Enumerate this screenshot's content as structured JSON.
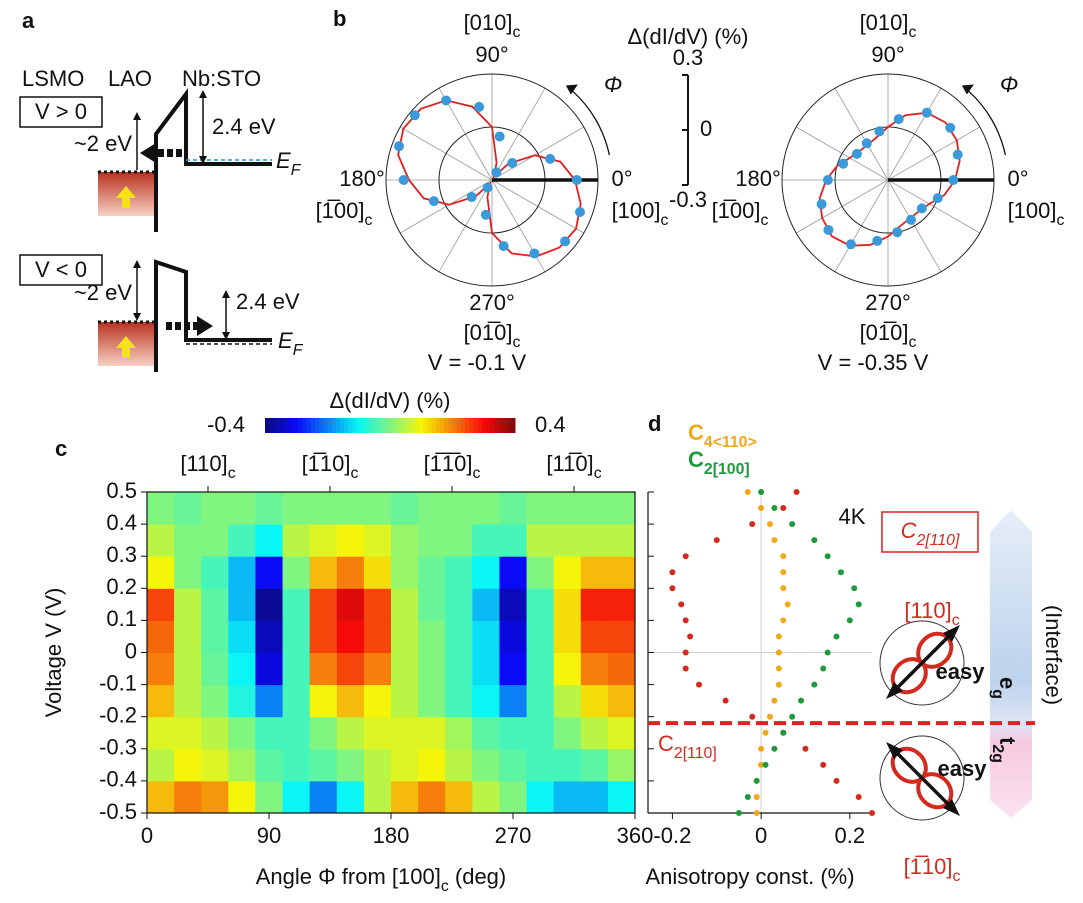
{
  "panel_labels": [
    "a",
    "b",
    "c",
    "d"
  ],
  "diagram": {
    "materials": [
      {
        "text": "LSMO",
        "color": "#e02020"
      },
      {
        "text": "LAO",
        "color": "#111111"
      },
      {
        "text": "Nb:STO",
        "color": "#1a9ad6"
      }
    ],
    "forward": {
      "bias": "V > 0",
      "barrier": "~2 eV",
      "gap": "2.4 eV",
      "fermi": {
        "main": "E",
        "sub": "F"
      }
    },
    "reverse": {
      "bias": "V < 0",
      "barrier": "~2 eV",
      "gap": "2.4 eV",
      "fermi": {
        "main": "E",
        "sub": "F"
      }
    }
  },
  "chart_data": [
    {
      "type": "polar",
      "title": "V = -0.1 V",
      "rlim": [
        -0.3,
        0.3
      ],
      "rticks": [
        0.3,
        0,
        -0.3
      ],
      "scale_bar": true,
      "r_label": "Δ(dI/dV) (%)",
      "phi_label": "Φ",
      "color": "#3a9ad9",
      "theta": [
        0,
        20,
        40,
        60,
        80,
        100,
        120,
        140,
        160,
        180,
        200,
        220,
        240,
        260,
        280,
        300,
        320,
        340
      ],
      "values": [
        0.18,
        0.05,
        -0.15,
        -0.25,
        -0.05,
        0.12,
        0.22,
        0.27,
        0.26,
        0.2,
        0.05,
        -0.15,
        -0.25,
        -0.1,
        0.08,
        0.18,
        0.24,
        0.23
      ],
      "fit": {
        "color": "#e02020",
        "theta": [
          0,
          15,
          30,
          45,
          60,
          75,
          90,
          105,
          120,
          135,
          150,
          165,
          180,
          195,
          210,
          225,
          240,
          255,
          270,
          285,
          300,
          315,
          330,
          345
        ],
        "values": [
          0.17,
          0.1,
          -0.02,
          -0.17,
          -0.28,
          -0.2,
          0,
          0.13,
          0.22,
          0.27,
          0.28,
          0.25,
          0.17,
          0.1,
          -0.02,
          -0.17,
          -0.28,
          -0.2,
          0,
          0.13,
          0.2,
          0.24,
          0.25,
          0.22
        ]
      },
      "angle_labels": [
        {
          "value": 0,
          "label": "0°"
        },
        {
          "value": 90,
          "label": "90°"
        },
        {
          "value": 180,
          "label": "180°"
        },
        {
          "value": 270,
          "label": "270°"
        }
      ],
      "direction_labels": [
        {
          "angle": 0,
          "main": "[100]",
          "sub": "c"
        },
        {
          "angle": 90,
          "main": "[010]",
          "sub": "c"
        },
        {
          "angle": 180,
          "main": "[1̅00]",
          "sub": "c"
        },
        {
          "angle": 270,
          "main": "[01̅0]",
          "sub": "c"
        }
      ]
    },
    {
      "type": "polar",
      "title": "V = -0.35 V",
      "rlim": [
        -0.3,
        0.3
      ],
      "rticks": [
        0.3,
        0,
        -0.3
      ],
      "scale_bar": false,
      "phi_label": "Φ",
      "color": "#3a9ad9",
      "theta": [
        0,
        20,
        40,
        60,
        80,
        100,
        120,
        140,
        160,
        180,
        200,
        220,
        240,
        260,
        280,
        300,
        320,
        340
      ],
      "values": [
        0.07,
        0.12,
        0.16,
        0.14,
        0.05,
        -0.02,
        -0.06,
        -0.07,
        -0.03,
        0.04,
        0.1,
        0.14,
        0.12,
        0.05,
        0,
        -0.04,
        -0.05,
        0
      ],
      "fit": {
        "color": "#e02020",
        "theta": [
          0,
          15,
          30,
          45,
          60,
          75,
          90,
          105,
          120,
          135,
          150,
          165,
          180,
          195,
          210,
          225,
          240,
          255,
          270,
          285,
          300,
          315,
          330,
          345
        ],
        "values": [
          0.08,
          0.12,
          0.15,
          0.16,
          0.14,
          0.08,
          0,
          -0.05,
          -0.07,
          -0.07,
          -0.05,
          0,
          0.05,
          0.1,
          0.13,
          0.15,
          0.13,
          0.08,
          0.02,
          -0.03,
          -0.05,
          -0.05,
          -0.03,
          0.03
        ]
      },
      "angle_labels": [
        {
          "value": 0,
          "label": "0°"
        },
        {
          "value": 90,
          "label": "90°"
        },
        {
          "value": 180,
          "label": "180°"
        },
        {
          "value": 270,
          "label": "270°"
        }
      ],
      "direction_labels": [
        {
          "angle": 0,
          "main": "[100]",
          "sub": "c"
        },
        {
          "angle": 90,
          "main": "[010]",
          "sub": "c"
        },
        {
          "angle": 180,
          "main": "[1̅00]",
          "sub": "c"
        },
        {
          "angle": 270,
          "main": "[01̅0]",
          "sub": "c"
        }
      ]
    },
    {
      "type": "heatmap",
      "colormap": "jet",
      "zlim": [
        -0.4,
        0.4
      ],
      "colorbar": {
        "label": "Δ(dI/dV) (%)",
        "ticks": [
          -0.4,
          0.4
        ]
      },
      "xbins": [
        0,
        20,
        40,
        60,
        80,
        100,
        120,
        140,
        160,
        180,
        200,
        220,
        240,
        260,
        280,
        300,
        320,
        340,
        360
      ],
      "ybins": [
        -0.5,
        -0.4,
        -0.3,
        -0.2,
        -0.1,
        0,
        0.1,
        0.2,
        0.3,
        0.4,
        0.5
      ],
      "z": [
        [
          0.15,
          0.2,
          0.18,
          0.1,
          0,
          -0.1,
          -0.2,
          -0.1,
          0.05,
          0.15,
          0.2,
          0.15,
          0.05,
          0,
          -0.1,
          -0.15,
          -0.15,
          -0.1
        ],
        [
          0.05,
          0.1,
          0.08,
          0.03,
          -0.03,
          -0.05,
          -0.03,
          0,
          0.05,
          0.08,
          0.1,
          0.05,
          0,
          -0.03,
          -0.05,
          -0.05,
          -0.03,
          0.02
        ],
        [
          0.08,
          0.08,
          0.05,
          0,
          -0.05,
          -0.05,
          0,
          0.05,
          0.08,
          0.08,
          0.08,
          0.03,
          -0.03,
          -0.05,
          -0.05,
          0,
          0.05,
          0.08
        ],
        [
          0.15,
          0.05,
          0,
          -0.08,
          -0.2,
          -0.05,
          0.1,
          0.15,
          0.1,
          0.05,
          0,
          -0.05,
          -0.1,
          -0.2,
          -0.05,
          0.05,
          0.12,
          0.15
        ],
        [
          0.2,
          0.05,
          -0.02,
          -0.1,
          -0.32,
          -0.05,
          0.2,
          0.25,
          0.2,
          0.05,
          0,
          -0.05,
          -0.12,
          -0.3,
          -0.05,
          0.1,
          0.2,
          0.22
        ],
        [
          0.22,
          0.05,
          -0.03,
          -0.12,
          -0.35,
          -0.05,
          0.25,
          0.3,
          0.25,
          0.05,
          0,
          -0.05,
          -0.12,
          -0.32,
          -0.05,
          0.12,
          0.25,
          0.25
        ],
        [
          0.25,
          0.05,
          -0.03,
          -0.15,
          -0.38,
          -0.05,
          0.25,
          0.32,
          0.25,
          0.05,
          -0.02,
          -0.05,
          -0.15,
          -0.35,
          -0.05,
          0.12,
          0.28,
          0.28
        ],
        [
          0.1,
          0,
          -0.05,
          -0.15,
          -0.3,
          0,
          0.15,
          0.2,
          0.12,
          0.02,
          -0.02,
          -0.05,
          -0.1,
          -0.3,
          0,
          0.1,
          0.15,
          0.15
        ],
        [
          0.05,
          0,
          0,
          -0.05,
          -0.1,
          0.05,
          0.08,
          0.1,
          0.08,
          0.02,
          0,
          0,
          -0.05,
          -0.05,
          0.05,
          0.05,
          0.05,
          0.05
        ],
        [
          0,
          -0.02,
          0,
          0,
          -0.02,
          0,
          0,
          0,
          0,
          -0.02,
          0,
          0,
          0,
          -0.02,
          0,
          0,
          0,
          0
        ]
      ],
      "xlim": [
        0,
        360
      ],
      "xticks": [
        0,
        90,
        180,
        270,
        360
      ],
      "ylim": [
        -0.5,
        0.5
      ],
      "yticks": [
        0.5,
        0.4,
        0.3,
        0.2,
        0.1,
        0,
        -0.1,
        -0.2,
        -0.3,
        -0.4,
        -0.5
      ],
      "xlabel": {
        "main": "Angle Φ from [100]",
        "sub": "c",
        "tail": " (deg)"
      },
      "ylabel": "Voltage V (V)",
      "top_labels": [
        {
          "value": 45,
          "main": "[110]",
          "sub": "c"
        },
        {
          "value": 135,
          "main": "[1̅10]",
          "sub": "c"
        },
        {
          "value": 225,
          "main": "[1̅1̅0]",
          "sub": "c"
        },
        {
          "value": 315,
          "main": "[11̅0]",
          "sub": "c"
        }
      ]
    },
    {
      "type": "scatter",
      "y": [
        0.5,
        0.45,
        0.4,
        0.35,
        0.3,
        0.25,
        0.2,
        0.15,
        0.1,
        0.05,
        0,
        -0.05,
        -0.1,
        -0.15,
        -0.2,
        -0.25,
        -0.3,
        -0.35,
        -0.4,
        -0.45,
        -0.5
      ],
      "series": [
        {
          "name": {
            "main": "C",
            "sub": "2[110]"
          },
          "color": "#d42a1e",
          "values": [
            0.08,
            0.05,
            -0.02,
            -0.1,
            -0.17,
            -0.2,
            -0.2,
            -0.18,
            -0.17,
            -0.16,
            -0.17,
            -0.17,
            -0.14,
            -0.08,
            -0.02,
            0.05,
            0.1,
            0.14,
            0.17,
            0.22,
            0.25
          ]
        },
        {
          "name": {
            "main": "C",
            "sub": "4<110>"
          },
          "color": "#f0a818",
          "values": [
            -0.03,
            0,
            0.02,
            0.03,
            0.05,
            0.05,
            0.05,
            0.06,
            0.05,
            0.04,
            0.04,
            0.04,
            0.04,
            0.03,
            0.02,
            0.01,
            0,
            0,
            -0.01,
            -0.01,
            -0.01
          ]
        },
        {
          "name": {
            "main": "C",
            "sub": "2[100]"
          },
          "color": "#1e9a3c",
          "values": [
            0,
            0.03,
            0.07,
            0.12,
            0.15,
            0.18,
            0.21,
            0.22,
            0.2,
            0.17,
            0.15,
            0.14,
            0.12,
            0.09,
            0.07,
            0.05,
            0.03,
            0.01,
            -0.01,
            -0.03,
            -0.05
          ]
        }
      ],
      "xlim": [
        -0.255,
        0.25
      ],
      "xticks": [
        -0.2,
        0,
        0.2
      ],
      "ylim": [
        -0.5,
        0.5
      ],
      "yticks": [
        0.5,
        0.4,
        0.3,
        0.2,
        0.1,
        0,
        -0.1,
        -0.2,
        -0.3,
        -0.4,
        -0.5
      ],
      "xlabel": "Anisotropy const. (%)",
      "annotation": "4K",
      "threshold": -0.22,
      "threshold_color": "#e02020"
    }
  ],
  "side": {
    "title": {
      "main": "C",
      "sub": "2[110]"
    },
    "top_direction": {
      "main": "[110]",
      "sub": "c"
    },
    "bottom_direction": {
      "main": "[1̅10]",
      "sub": "c"
    },
    "easy": [
      "easy",
      "easy"
    ],
    "upper_band": {
      "main": "e",
      "sub": "g"
    },
    "lower_band": {
      "main": "t",
      "sub": "2g"
    },
    "side_label": "(Interface)"
  }
}
